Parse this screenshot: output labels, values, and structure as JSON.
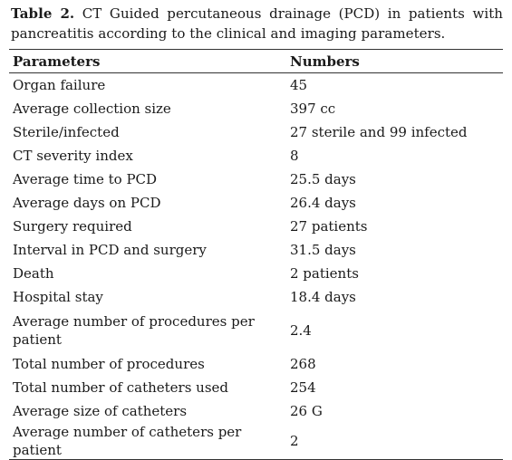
{
  "caption": {
    "label": "Table 2.",
    "text": "CT Guided percutaneous drainage (PCD) in patients with pancreatitis according to the clinical and imaging parameters."
  },
  "table": {
    "headers": [
      "Parameters",
      "Numbers"
    ],
    "rows": [
      [
        "Organ failure",
        "45"
      ],
      [
        "Average collection size",
        "397 cc"
      ],
      [
        "Sterile/infected",
        "27 sterile and 99 infected"
      ],
      [
        "CT severity index",
        "8"
      ],
      [
        "Average time to PCD",
        "25.5 days"
      ],
      [
        "Average days on PCD",
        "26.4 days"
      ],
      [
        "Surgery required",
        "27 patients"
      ],
      [
        "Interval in PCD and surgery",
        "31.5 days"
      ],
      [
        "Death",
        "2 patients"
      ],
      [
        "Hospital stay",
        "18.4 days"
      ],
      [
        "Average number of procedures per patient",
        "2.4"
      ],
      [
        "Total number of procedures",
        "268"
      ],
      [
        "Total number of catheters used",
        "254"
      ],
      [
        "Average size of catheters",
        "26 G"
      ],
      [
        "Average number of catheters per patient",
        "2"
      ]
    ]
  }
}
